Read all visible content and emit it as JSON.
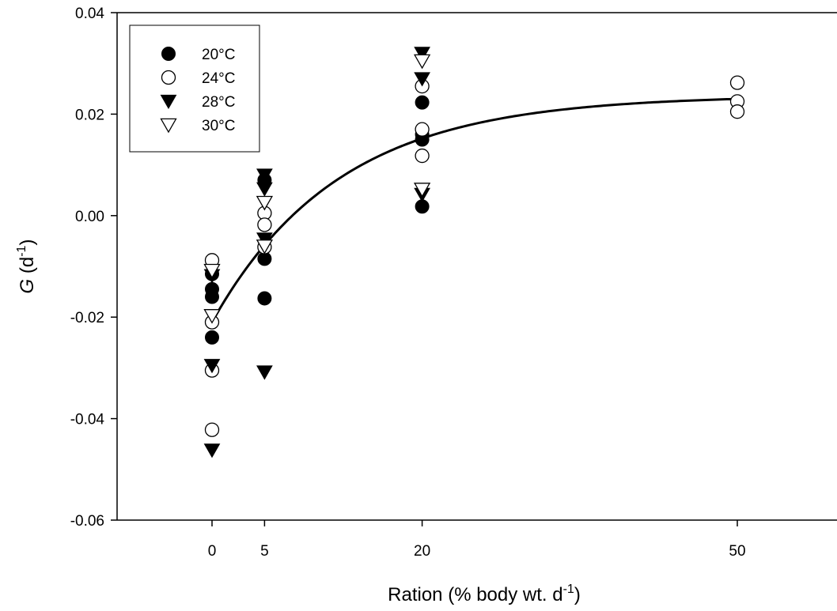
{
  "chart_data": {
    "type": "scatter",
    "xlabel": {
      "prefix": "Ration (% body wt. d",
      "sup": "-1",
      "suffix": ")"
    },
    "ylabel": {
      "italic": "G",
      "prefix": " (d",
      "sup": "-1",
      "suffix": ")"
    },
    "xlim": [
      -10,
      60
    ],
    "ylim": [
      -0.06,
      0.04
    ],
    "x_ticks": [
      0,
      5,
      20,
      50
    ],
    "x_tick_labels": [
      "0",
      "5",
      "20",
      "50"
    ],
    "y_ticks": [
      -0.06,
      -0.04,
      -0.02,
      0.0,
      0.02,
      0.04
    ],
    "y_tick_labels": [
      "-0.06",
      "-0.04",
      "-0.02",
      "0.00",
      "0.02",
      "0.04"
    ],
    "grid": false,
    "legend_position": "top-left",
    "series": [
      {
        "name": "20°C",
        "marker": "circle-filled",
        "points": [
          [
            0,
            -0.0115
          ],
          [
            0,
            -0.0145
          ],
          [
            0,
            -0.016
          ],
          [
            0,
            -0.024
          ],
          [
            5,
            0.007
          ],
          [
            5,
            -0.0085
          ],
          [
            5,
            -0.0163
          ],
          [
            20,
            0.0223
          ],
          [
            20,
            0.016
          ],
          [
            20,
            0.015
          ],
          [
            20,
            0.0018
          ]
        ]
      },
      {
        "name": "24°C",
        "marker": "circle-open",
        "points": [
          [
            0,
            -0.0088
          ],
          [
            0,
            -0.021
          ],
          [
            0,
            -0.0305
          ],
          [
            0,
            -0.0422
          ],
          [
            5,
            0.0005
          ],
          [
            5,
            -0.0018
          ],
          [
            5,
            -0.0062
          ],
          [
            20,
            0.0255
          ],
          [
            20,
            0.017
          ],
          [
            20,
            0.0118
          ],
          [
            50,
            0.0262
          ],
          [
            50,
            0.0225
          ],
          [
            50,
            0.0205
          ]
        ]
      },
      {
        "name": "28°C",
        "marker": "triangle-down-filled",
        "points": [
          [
            0,
            -0.0118
          ],
          [
            0,
            -0.0295
          ],
          [
            0,
            -0.0462
          ],
          [
            5,
            0.008
          ],
          [
            5,
            0.0053
          ],
          [
            5,
            -0.0046
          ],
          [
            5,
            -0.0308
          ],
          [
            20,
            0.032
          ],
          [
            20,
            0.027
          ],
          [
            20,
            0.0042
          ]
        ]
      },
      {
        "name": "30°C",
        "marker": "triangle-down-open",
        "points": [
          [
            0,
            -0.0108
          ],
          [
            0,
            -0.0197
          ],
          [
            5,
            0.0026
          ],
          [
            5,
            -0.006
          ],
          [
            20,
            0.0305
          ],
          [
            20,
            0.0052
          ]
        ]
      }
    ],
    "fit_curve": {
      "model": "exponential-rise",
      "a": 0.0237,
      "b": 0.0447,
      "k": 0.083,
      "x_range": [
        0,
        50
      ]
    }
  }
}
